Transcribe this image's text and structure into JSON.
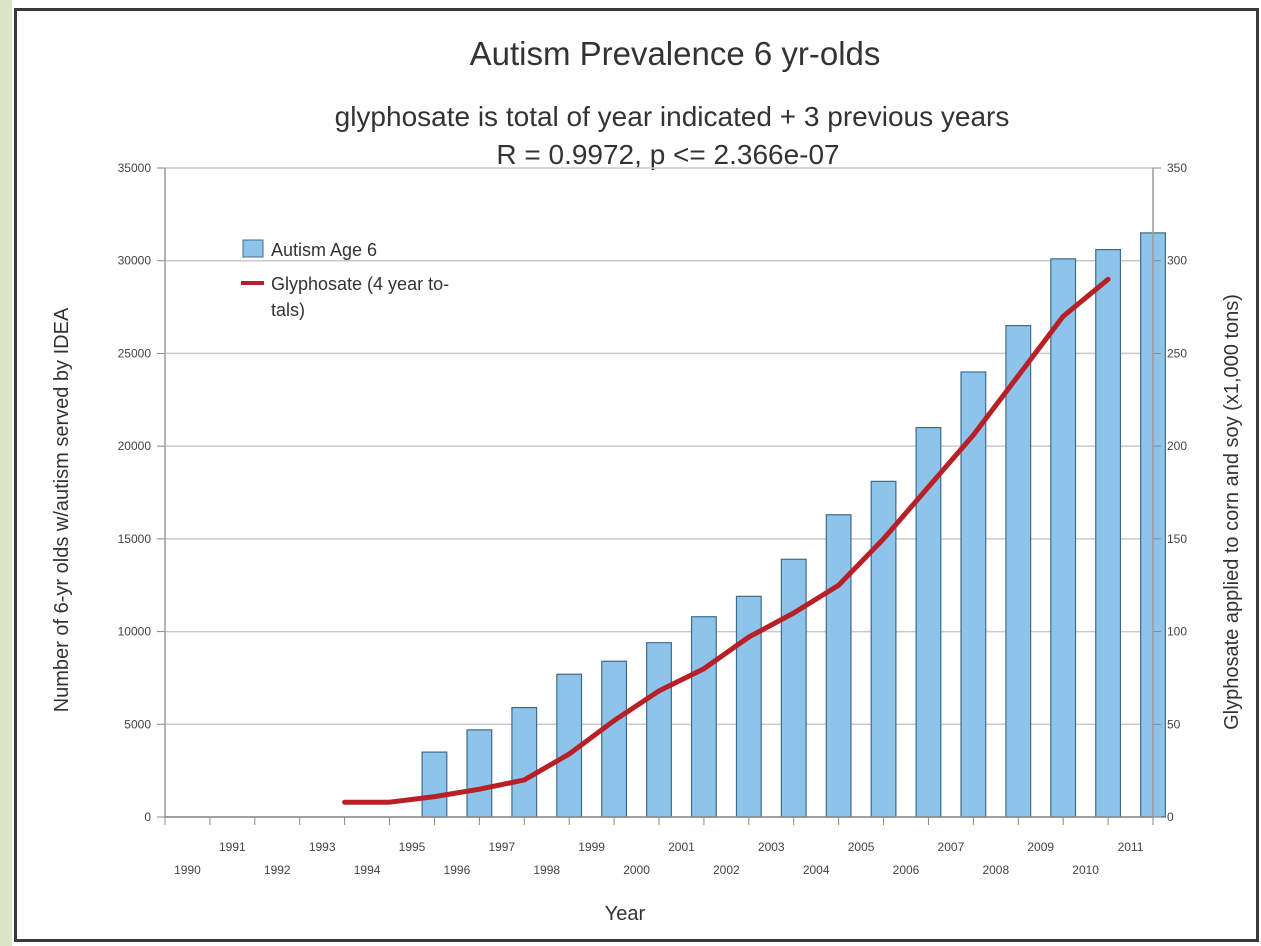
{
  "chart_data": {
    "type": "bar",
    "title": "Autism Prevalence 6 yr-olds",
    "subtitle_line1": "glyphosate is total of year indicated + 3 previous years",
    "subtitle_line2": "R = 0.9972, p <= 2.366e-07",
    "xlabel": "Year",
    "ylabel_left": "Number of 6-yr olds w/autism served by IDEA",
    "ylabel_right": "Glyphosate applied to corn and soy (x1,000 tons)",
    "ylim_left": [
      0,
      35000
    ],
    "ylim_right": [
      0,
      350
    ],
    "yticks_left": [
      "0",
      "5000",
      "10000",
      "15000",
      "20000",
      "25000",
      "30000",
      "35000"
    ],
    "yticks_right": [
      "0",
      "50",
      "100",
      "150",
      "200",
      "250",
      "300",
      "350"
    ],
    "categories": [
      "1990",
      "1991",
      "1992",
      "1993",
      "1994",
      "1995",
      "1996",
      "1997",
      "1998",
      "1999",
      "2000",
      "2001",
      "2002",
      "2003",
      "2004",
      "2005",
      "2006",
      "2007",
      "2008",
      "2009",
      "2010",
      "2011"
    ],
    "series": [
      {
        "name": "Autism Age 6",
        "axis": "left",
        "kind": "bar",
        "color": "#8ec4ea",
        "values": [
          null,
          null,
          null,
          null,
          null,
          3500,
          4700,
          5900,
          7700,
          8400,
          9400,
          10800,
          11900,
          13900,
          16300,
          18100,
          21000,
          24000,
          26500,
          30100,
          30600,
          31500
        ]
      },
      {
        "name": "Glyphosate (4 year to-tals)",
        "legend_lines": [
          "Glyphosate (4 year to-",
          "tals)"
        ],
        "axis": "right",
        "kind": "line",
        "color": "#b72026",
        "values": [
          null,
          null,
          null,
          8,
          8,
          11,
          15,
          20,
          34,
          52,
          68,
          80,
          97,
          110,
          125,
          150,
          178,
          206,
          238,
          270,
          290,
          null
        ]
      }
    ],
    "grid": true,
    "legend_position": "top-left"
  }
}
